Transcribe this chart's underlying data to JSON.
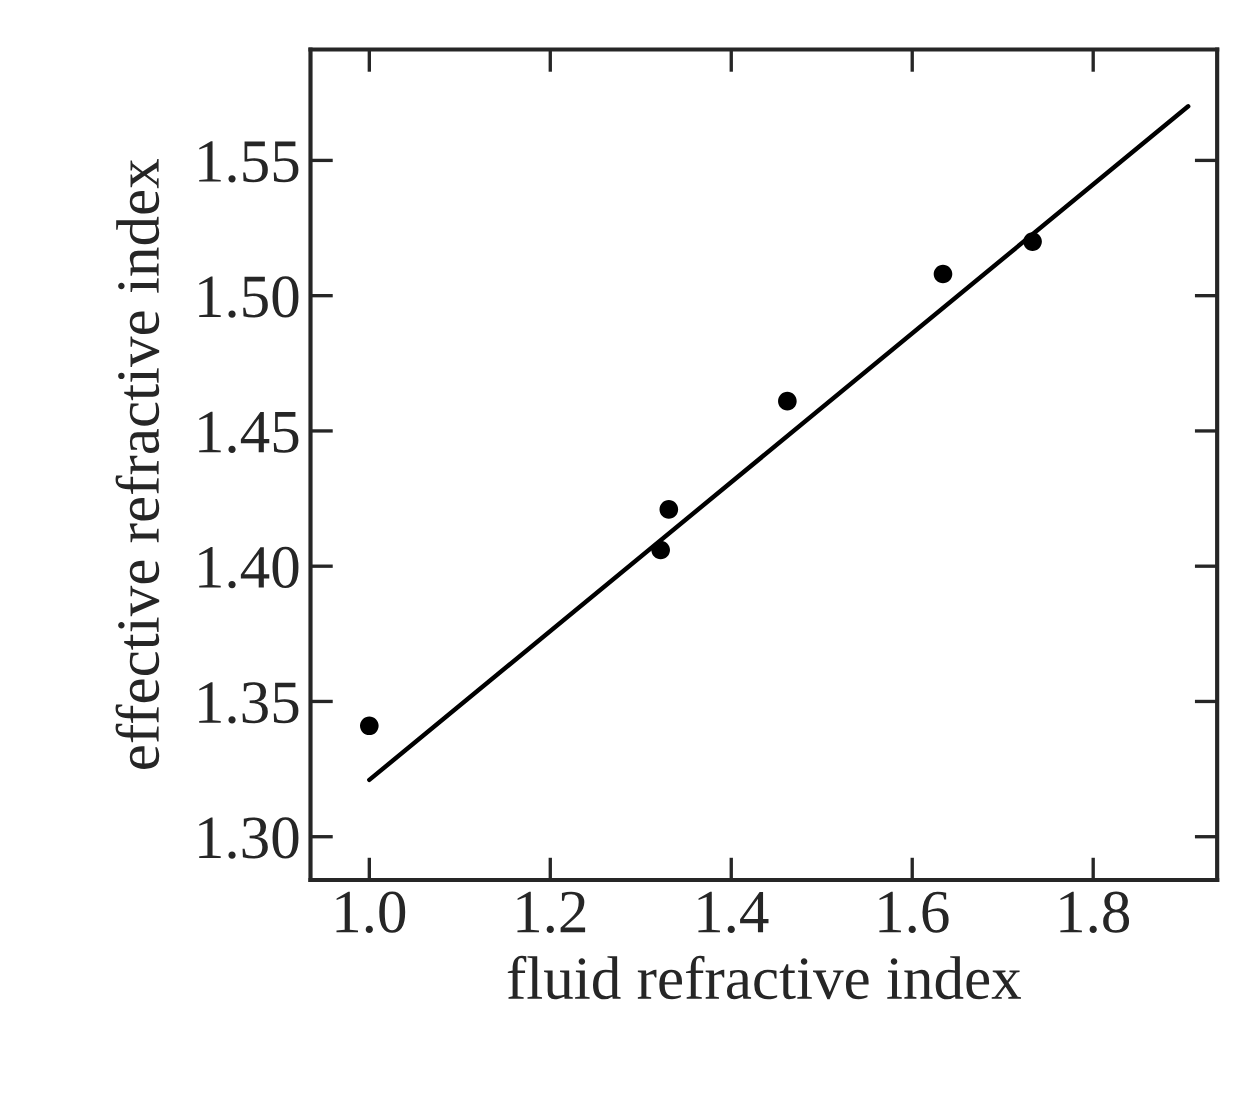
{
  "chart_data": {
    "type": "scatter",
    "xlabel": "fluid refractive index",
    "ylabel": "effective refractive index",
    "x": [
      1.0,
      1.322,
      1.331,
      1.462,
      1.634,
      1.733
    ],
    "series": [
      {
        "color": "#000000",
        "values": [
          1.341,
          1.406,
          1.421,
          1.461,
          1.508,
          1.52
        ]
      },
      {
        "type": "line",
        "color": "#000000",
        "x": [
          1.0,
          1.905
        ],
        "values": [
          1.321,
          1.57
        ]
      }
    ],
    "xlim": [
      0.935,
      1.937
    ],
    "ylim": [
      1.284,
      1.591
    ],
    "xticks": [
      {
        "value": 1.0,
        "label": "1.0"
      },
      1.2,
      1.4,
      1.6,
      1.8
    ],
    "yticks": [
      {
        "value": 1.3,
        "label": "1.30"
      },
      1.35,
      {
        "value": 1.4,
        "label": "1.40"
      },
      1.45,
      {
        "value": 1.5,
        "label": "1.50"
      },
      1.55
    ],
    "grid": false,
    "legend": false
  }
}
